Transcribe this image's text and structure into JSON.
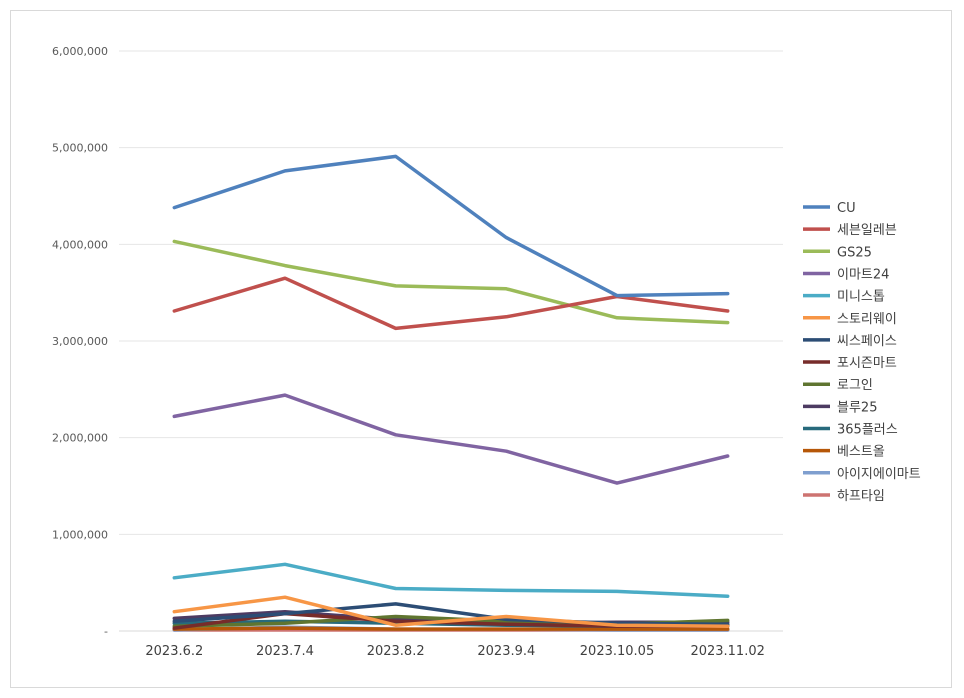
{
  "chart_data": {
    "type": "line",
    "title": "",
    "xlabel": "",
    "ylabel": "",
    "categories": [
      "2023.6.2",
      "2023.7.4",
      "2023.8.2",
      "2023.9.4",
      "2023.10.05",
      "2023.11.02"
    ],
    "ylim": [
      0,
      6000000
    ],
    "yticks": [
      0,
      1000000,
      2000000,
      3000000,
      4000000,
      5000000,
      6000000
    ],
    "ytick_labels": [
      "-",
      "1,000,000",
      "2,000,000",
      "3,000,000",
      "4,000,000",
      "5,000,000",
      "6,000,000"
    ],
    "grid": true,
    "legend_position": "right",
    "series": [
      {
        "name": "CU",
        "color": "#4F81BD",
        "values": [
          4380000,
          4760000,
          4910000,
          4070000,
          3470000,
          3490000
        ]
      },
      {
        "name": "세븐일레븐",
        "color": "#C0504D",
        "values": [
          3310000,
          3650000,
          3130000,
          3250000,
          3460000,
          3310000
        ]
      },
      {
        "name": "GS25",
        "color": "#9BBB59",
        "values": [
          4030000,
          3780000,
          3570000,
          3540000,
          3240000,
          3190000
        ]
      },
      {
        "name": "이마트24",
        "color": "#8064A2",
        "values": [
          2220000,
          2440000,
          2030000,
          1860000,
          1530000,
          1810000
        ]
      },
      {
        "name": "미니스톱",
        "color": "#4BACC6",
        "values": [
          550000,
          690000,
          440000,
          420000,
          410000,
          360000
        ]
      },
      {
        "name": "스토리웨이",
        "color": "#F79646",
        "values": [
          200000,
          350000,
          60000,
          150000,
          60000,
          50000
        ]
      },
      {
        "name": "씨스페이스",
        "color": "#2C4D75",
        "values": [
          100000,
          180000,
          280000,
          120000,
          80000,
          70000
        ]
      },
      {
        "name": "포시즌마트",
        "color": "#772C2A",
        "values": [
          30000,
          180000,
          100000,
          70000,
          50000,
          50000
        ]
      },
      {
        "name": "로그인",
        "color": "#5F7530",
        "values": [
          50000,
          80000,
          150000,
          100000,
          70000,
          110000
        ]
      },
      {
        "name": "블루25",
        "color": "#4D3B62",
        "values": [
          130000,
          200000,
          120000,
          80000,
          90000,
          90000
        ]
      },
      {
        "name": "365플러스",
        "color": "#276A7C",
        "values": [
          80000,
          100000,
          80000,
          60000,
          50000,
          60000
        ]
      },
      {
        "name": "베스트올",
        "color": "#B65708",
        "values": [
          20000,
          30000,
          20000,
          20000,
          20000,
          20000
        ]
      },
      {
        "name": "아이지에이마트",
        "color": "#7F9FCF",
        "values": [
          10000,
          40000,
          20000,
          20000,
          10000,
          10000
        ]
      },
      {
        "name": "하프타임",
        "color": "#CD7371",
        "values": [
          10000,
          10000,
          10000,
          10000,
          10000,
          10000
        ]
      }
    ]
  }
}
